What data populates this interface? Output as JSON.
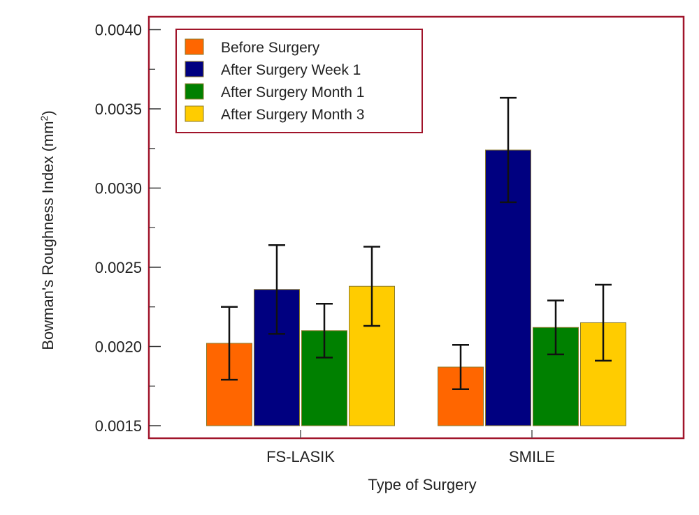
{
  "chart_data": {
    "type": "bar",
    "title": "",
    "xlabel": "Type of Surgery",
    "ylabel": "Bowman's Roughness Index (mm",
    "ylabel_superscript": "2",
    "ylabel_suffix": ")",
    "ylim": [
      0.0015,
      0.0041
    ],
    "yticks": [
      0.0015,
      0.002,
      0.0025,
      0.003,
      0.0035,
      0.004
    ],
    "ytick_labels": [
      "0.0015",
      "0.0020",
      "0.0025",
      "0.0030",
      "0.0035",
      "0.0040"
    ],
    "yminor_ticks": [
      0.00175,
      0.00225,
      0.00275,
      0.00325,
      0.00375
    ],
    "grid": false,
    "legend_position": "top-left",
    "categories": [
      "FS-LASIK",
      "SMILE"
    ],
    "series": [
      {
        "name": "Before Surgery",
        "color": "#ff6600",
        "values": [
          0.00202,
          0.00187
        ],
        "errors": [
          0.00023,
          0.00014
        ]
      },
      {
        "name": "After Surgery Week 1",
        "color": "#000080",
        "values": [
          0.00236,
          0.00324
        ],
        "errors": [
          0.00028,
          0.00033
        ]
      },
      {
        "name": "After Surgery Month 1",
        "color": "#008000",
        "values": [
          0.0021,
          0.00212
        ],
        "errors": [
          0.00017,
          0.00017
        ]
      },
      {
        "name": "After Surgery Month 3",
        "color": "#ffcc00",
        "values": [
          0.00238,
          0.00215
        ],
        "errors": [
          0.00025,
          0.00024
        ]
      }
    ],
    "frame_color": "#a0142a"
  }
}
